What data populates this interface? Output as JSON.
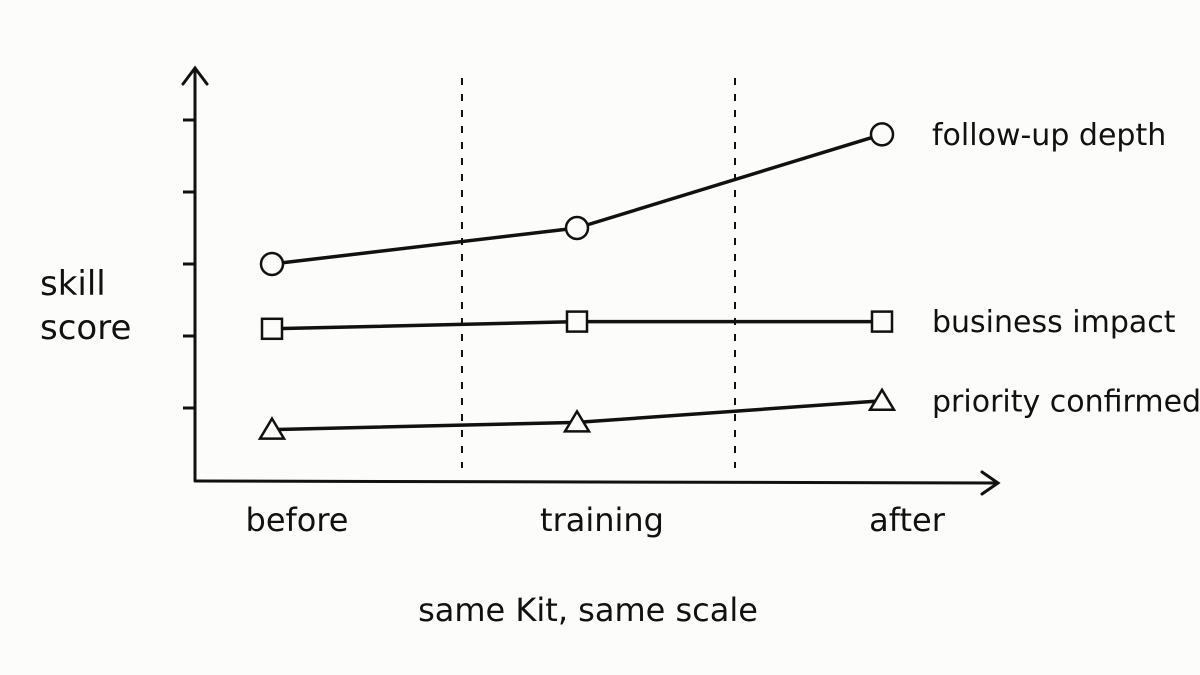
{
  "chart_data": {
    "type": "line",
    "x_label": "same Kit, same scale",
    "y_label": "skill score",
    "categories": [
      "before",
      "training",
      "after"
    ],
    "ylim": [
      0,
      5.7
    ],
    "yticks": [
      1,
      2,
      3,
      4,
      5
    ],
    "series": [
      {
        "name": "follow-up depth",
        "color": "#111111",
        "marker": "circle",
        "values": [
          3.0,
          3.5,
          4.8
        ]
      },
      {
        "name": "business impact",
        "color": "#111111",
        "marker": "square",
        "values": [
          2.1,
          2.2,
          2.2
        ]
      },
      {
        "name": "priority confirmed",
        "color": "#111111",
        "marker": "triangle",
        "values": [
          0.7,
          0.8,
          1.1
        ]
      }
    ]
  }
}
